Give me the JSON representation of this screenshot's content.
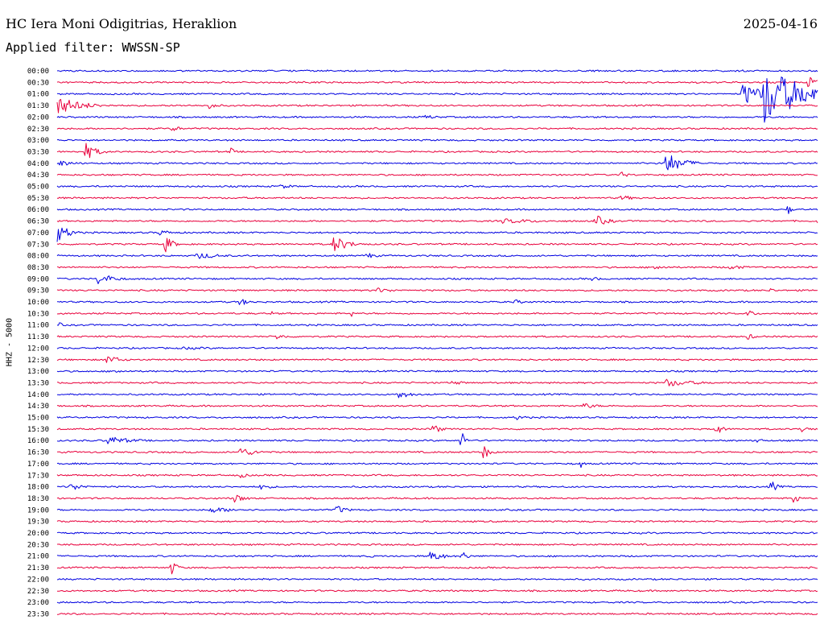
{
  "header": {
    "station": "HC Iera Moni Odigitrias, Heraklion",
    "date": "2025-04-16",
    "filter": "Applied filter: WWSSN-SP"
  },
  "channel_label": "HHZ - 5000",
  "colors": {
    "odd_trace": "#0000e0",
    "even_trace": "#e8003c",
    "text": "#000000"
  },
  "chart_data": {
    "type": "line",
    "title": "HC Iera Moni Odigitrias, Heraklion",
    "subtitle": "Applied filter: WWSSN-SP",
    "ylabel": "HHZ - 5000",
    "xlabel": "",
    "x_minutes_per_row": 30,
    "grid": false,
    "legend": "none",
    "series": [
      {
        "name": "00:00",
        "color": "blue",
        "events": []
      },
      {
        "name": "00:30",
        "color": "red",
        "events": [
          [
            29.6,
            0.8,
            0.6
          ]
        ]
      },
      {
        "name": "01:00",
        "color": "blue",
        "events": [
          [
            27.8,
            2.2,
            3.2
          ],
          [
            27.0,
            1.2,
            1.2
          ]
        ]
      },
      {
        "name": "01:30",
        "color": "red",
        "events": [
          [
            0.0,
            1.5,
            0.9
          ],
          [
            6.0,
            0.6,
            0.35
          ]
        ]
      },
      {
        "name": "02:00",
        "color": "blue",
        "events": [
          [
            14.5,
            0.8,
            0.25
          ]
        ]
      },
      {
        "name": "02:30",
        "color": "red",
        "events": [
          [
            4.5,
            0.7,
            0.3
          ]
        ]
      },
      {
        "name": "03:00",
        "color": "blue",
        "events": []
      },
      {
        "name": "03:30",
        "color": "red",
        "events": [
          [
            1.1,
            0.7,
            0.9
          ],
          [
            6.8,
            0.3,
            0.5
          ]
        ]
      },
      {
        "name": "04:00",
        "color": "blue",
        "events": [
          [
            0.1,
            0.9,
            0.35
          ],
          [
            23.9,
            1.1,
            1.2
          ]
        ]
      },
      {
        "name": "04:30",
        "color": "red",
        "events": [
          [
            22.2,
            0.5,
            0.35
          ]
        ]
      },
      {
        "name": "05:00",
        "color": "blue",
        "events": [
          [
            8.8,
            0.9,
            0.25
          ]
        ]
      },
      {
        "name": "05:30",
        "color": "red",
        "events": [
          [
            22.2,
            0.9,
            0.3
          ]
        ]
      },
      {
        "name": "06:00",
        "color": "blue",
        "events": [
          [
            28.8,
            0.2,
            0.6
          ]
        ]
      },
      {
        "name": "06:30",
        "color": "red",
        "events": [
          [
            21.2,
            0.8,
            0.6
          ],
          [
            30.0,
            0.2,
            0.9
          ],
          [
            17.5,
            3.0,
            0.25
          ]
        ]
      },
      {
        "name": "07:00",
        "color": "blue",
        "events": [
          [
            0.0,
            0.7,
            1.0
          ],
          [
            4.0,
            1.0,
            0.3
          ]
        ]
      },
      {
        "name": "07:30",
        "color": "red",
        "events": [
          [
            4.2,
            0.5,
            1.0
          ],
          [
            10.8,
            0.9,
            1.0
          ]
        ]
      },
      {
        "name": "08:00",
        "color": "blue",
        "events": [
          [
            5.5,
            1.5,
            0.35
          ],
          [
            12.2,
            0.6,
            0.35
          ]
        ]
      },
      {
        "name": "08:30",
        "color": "red",
        "events": [
          [
            23.5,
            0.9,
            0.3
          ],
          [
            26.5,
            0.9,
            0.3
          ]
        ]
      },
      {
        "name": "09:00",
        "color": "blue",
        "events": [
          [
            1.6,
            1.0,
            0.6
          ],
          [
            21.0,
            1.0,
            0.2
          ]
        ]
      },
      {
        "name": "09:30",
        "color": "red",
        "events": [
          [
            12.5,
            1.2,
            0.3
          ],
          [
            28.1,
            0.3,
            0.3
          ]
        ]
      },
      {
        "name": "10:00",
        "color": "blue",
        "events": [
          [
            7.2,
            0.6,
            0.4
          ],
          [
            18.0,
            0.8,
            0.25
          ]
        ]
      },
      {
        "name": "10:30",
        "color": "red",
        "events": [
          [
            8.4,
            0.1,
            0.6
          ],
          [
            11.6,
            0.1,
            0.4
          ],
          [
            27.2,
            0.5,
            0.4
          ]
        ]
      },
      {
        "name": "11:00",
        "color": "blue",
        "events": [
          [
            0.1,
            0.3,
            0.25
          ]
        ]
      },
      {
        "name": "11:30",
        "color": "red",
        "events": [
          [
            8.6,
            0.8,
            0.3
          ],
          [
            27.2,
            0.6,
            0.3
          ]
        ]
      },
      {
        "name": "12:00",
        "color": "blue",
        "events": [
          [
            5.0,
            3.0,
            0.15
          ]
        ]
      },
      {
        "name": "12:30",
        "color": "red",
        "events": [
          [
            1.9,
            0.9,
            0.5
          ]
        ]
      },
      {
        "name": "13:00",
        "color": "blue",
        "events": [
          [
            2.2,
            0.8,
            0.25
          ]
        ]
      },
      {
        "name": "13:30",
        "color": "red",
        "events": [
          [
            24.0,
            1.8,
            0.4
          ],
          [
            15.5,
            1.0,
            0.25
          ]
        ]
      },
      {
        "name": "14:00",
        "color": "blue",
        "events": [
          [
            13.4,
            0.9,
            0.45
          ]
        ]
      },
      {
        "name": "14:30",
        "color": "red",
        "events": [
          [
            20.7,
            1.0,
            0.3
          ]
        ]
      },
      {
        "name": "15:00",
        "color": "blue",
        "events": [
          [
            18.1,
            0.8,
            0.25
          ]
        ]
      },
      {
        "name": "15:30",
        "color": "red",
        "events": [
          [
            14.8,
            0.5,
            0.55
          ],
          [
            25.9,
            0.4,
            0.8
          ],
          [
            29.3,
            0.5,
            0.5
          ]
        ]
      },
      {
        "name": "16:00",
        "color": "blue",
        "events": [
          [
            15.9,
            0.3,
            1.1
          ],
          [
            2.0,
            1.5,
            0.45
          ],
          [
            27.6,
            0.3,
            0.4
          ]
        ]
      },
      {
        "name": "16:30",
        "color": "red",
        "events": [
          [
            16.8,
            0.4,
            0.75
          ],
          [
            7.2,
            1.0,
            0.5
          ]
        ]
      },
      {
        "name": "17:00",
        "color": "blue",
        "events": [
          [
            20.6,
            0.2,
            0.6
          ]
        ]
      },
      {
        "name": "17:30",
        "color": "red",
        "events": [
          [
            7.2,
            0.5,
            0.3
          ]
        ]
      },
      {
        "name": "18:00",
        "color": "blue",
        "events": [
          [
            28.1,
            0.4,
            0.75
          ],
          [
            0.5,
            0.9,
            0.4
          ],
          [
            8.0,
            0.8,
            0.3
          ]
        ]
      },
      {
        "name": "18:30",
        "color": "red",
        "events": [
          [
            29.0,
            0.3,
            0.8
          ],
          [
            7.0,
            0.7,
            0.45
          ]
        ]
      },
      {
        "name": "19:00",
        "color": "blue",
        "events": [
          [
            11.0,
            0.6,
            0.5
          ],
          [
            6.0,
            1.8,
            0.3
          ]
        ]
      },
      {
        "name": "19:30",
        "color": "red",
        "events": []
      },
      {
        "name": "20:00",
        "color": "blue",
        "events": []
      },
      {
        "name": "20:30",
        "color": "red",
        "events": []
      },
      {
        "name": "21:00",
        "color": "blue",
        "events": [
          [
            14.7,
            0.8,
            0.6
          ],
          [
            15.9,
            0.4,
            0.6
          ],
          [
            12.3,
            0.2,
            0.3
          ]
        ]
      },
      {
        "name": "21:30",
        "color": "red",
        "events": [
          [
            4.5,
            0.4,
            0.75
          ]
        ]
      },
      {
        "name": "22:00",
        "color": "blue",
        "events": []
      },
      {
        "name": "22:30",
        "color": "red",
        "events": []
      },
      {
        "name": "23:00",
        "color": "blue",
        "events": []
      },
      {
        "name": "23:30",
        "color": "red",
        "events": []
      }
    ]
  }
}
